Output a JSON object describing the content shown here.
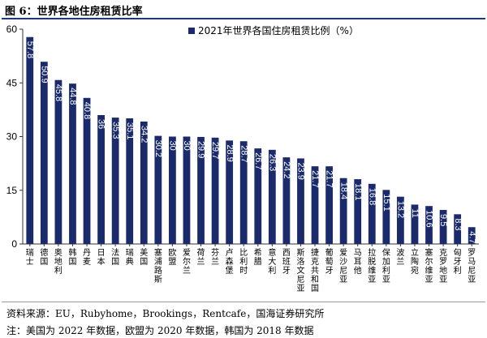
{
  "header": {
    "title": "图 6：世界各地住房租赁比率"
  },
  "footer": {
    "source": "资料来源：EU，Rubyhome，Brookings，Rentcafe，国海证券研究所",
    "note": "注：美国为 2022 年数据，欧盟为 2020 年数据，韩国为 2018 年数据"
  },
  "colors": {
    "bar": "#1b2a6b",
    "label": "#ffffff",
    "rule": "#1a3a78"
  },
  "chart_data": {
    "type": "bar",
    "categories": [
      "瑞士",
      "德国",
      "奥地利",
      "韩国",
      "丹麦",
      "日本",
      "法国",
      "瑞典",
      "美国",
      "塞浦路斯",
      "欧盟",
      "爱尔兰",
      "荷兰",
      "芬兰",
      "卢森堡",
      "比利时",
      "希腊",
      "意大利",
      "西班牙",
      "斯洛文尼亚",
      "捷克共和国",
      "葡萄牙",
      "爱沙尼亚",
      "马耳他",
      "拉脱维亚",
      "保加利亚",
      "波兰",
      "立陶宛",
      "塞尔维亚",
      "克罗地亚",
      "匈牙利",
      "罗马尼亚"
    ],
    "values": [
      57.8,
      50.9,
      45.8,
      44.8,
      40.8,
      36,
      35.3,
      35.1,
      34.2,
      30.2,
      30,
      30,
      29.9,
      29.7,
      28.9,
      28.7,
      26.7,
      26.3,
      24.2,
      23.9,
      21.7,
      21.7,
      18.4,
      18.1,
      16.8,
      15.1,
      13.2,
      11.0,
      10.6,
      9.5,
      8.3,
      4.7
    ],
    "data_labels": [
      "57.8",
      "50.9",
      "45.8",
      "44.8",
      "40.8",
      "36",
      "35.3",
      "35.1",
      "34.2",
      "30.2",
      "30",
      "30",
      "29.9",
      "29.7",
      "28.9",
      "28.7",
      "26.7",
      "26.3",
      "24.2",
      "23.9",
      "21.7",
      "21.7",
      "18.4",
      "18.1",
      "16.8",
      "15.1",
      "13.2",
      "11",
      "10.6",
      "9.5",
      "8.3",
      "4.7"
    ],
    "series_name": "2021年世界各国住房租赁比例（%）",
    "ylim": [
      0,
      60
    ],
    "yticks": [
      0,
      15,
      30,
      45,
      60
    ],
    "legend_position": "top-right",
    "grid": false
  }
}
